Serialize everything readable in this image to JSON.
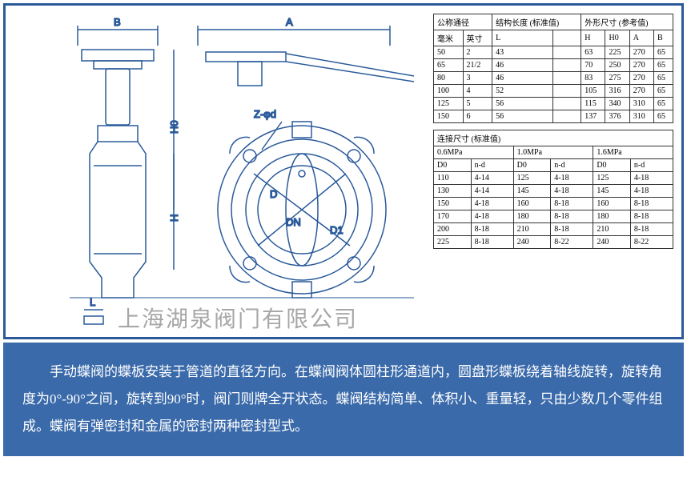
{
  "diagram": {
    "labels": {
      "A": "A",
      "B": "B",
      "H": "H",
      "H0": "H0",
      "L": "L",
      "L2": "L",
      "D": "D",
      "D1": "D1",
      "DN": "DN",
      "Zphi": "Z-φd"
    },
    "stroke": "#2a5a9a",
    "strokeWidth": 1.5
  },
  "table1": {
    "headers": {
      "c1": "公称通径",
      "c2": "结构长度 (标准值)",
      "c3": "外形尺寸 (参考值)"
    },
    "sub": {
      "mm": "毫米",
      "inch": "英寸",
      "L": "L",
      "H": "H",
      "H0": "H0",
      "A": "A",
      "B": "B"
    },
    "rows": [
      [
        "50",
        "2",
        "43",
        "",
        "63",
        "225",
        "270",
        "65"
      ],
      [
        "65",
        "21/2",
        "46",
        "",
        "70",
        "250",
        "270",
        "65"
      ],
      [
        "80",
        "3",
        "46",
        "",
        "83",
        "275",
        "270",
        "65"
      ],
      [
        "100",
        "4",
        "52",
        "",
        "105",
        "316",
        "270",
        "65"
      ],
      [
        "125",
        "5",
        "56",
        "",
        "115",
        "340",
        "310",
        "65"
      ],
      [
        "150",
        "6",
        "56",
        "",
        "137",
        "376",
        "310",
        "65"
      ]
    ]
  },
  "table2": {
    "header": "连接尺寸 (标准值)",
    "pressures": [
      "0.6MPa",
      "1.0MPa",
      "1.6MPa"
    ],
    "sub": [
      "D0",
      "n-d",
      "D0",
      "n-d",
      "D0",
      "n-d"
    ],
    "rows": [
      [
        "110",
        "4-14",
        "125",
        "4-18",
        "125",
        "4-18"
      ],
      [
        "130",
        "4-14",
        "145",
        "4-18",
        "145",
        "4-18"
      ],
      [
        "150",
        "4-18",
        "160",
        "8-18",
        "160",
        "8-18"
      ],
      [
        "170",
        "4-18",
        "180",
        "8-18",
        "180",
        "8-18"
      ],
      [
        "200",
        "8-18",
        "210",
        "8-18",
        "210",
        "8-18"
      ],
      [
        "225",
        "8-18",
        "240",
        "8-22",
        "240",
        "8-22"
      ]
    ]
  },
  "watermark": "上海湖泉阀门有限公司",
  "description": "手动蝶阀的蝶板安装于管道的直径方向。在蝶阀阀体圆柱形通道内，圆盘形蝶板绕着轴线旋转，旋转角度为0°-90°之间，旋转到90°时，阀门则牌全开状态。蝶阀结构简单、体积小、重量轻，只由少数几个零件组成。蝶阀有弹密封和金属的密封两种密封型式。"
}
